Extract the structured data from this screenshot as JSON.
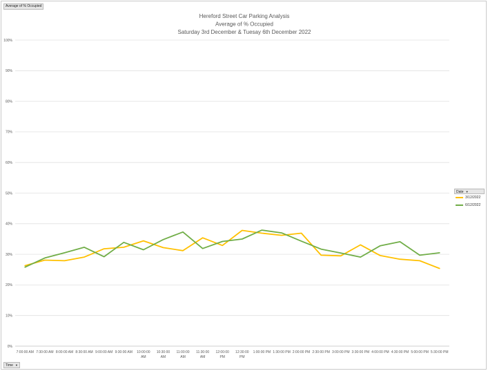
{
  "pivot": {
    "value_field": "Average of % Occupied",
    "axis_field": "Time",
    "legend_field": "Date"
  },
  "chart_data": {
    "type": "line",
    "title": [
      "Hereford Street Car Parking Analysis",
      "Average of % Occupied",
      "Saturday 3rd December & Tuesay 6th December 2022"
    ],
    "xlabel": "",
    "ylabel": "",
    "ylim": [
      0,
      100
    ],
    "yticks": [
      "0%",
      "10%",
      "20%",
      "30%",
      "40%",
      "50%",
      "60%",
      "70%",
      "80%",
      "90%",
      "100%"
    ],
    "categories": [
      [
        "7:00:00 AM"
      ],
      [
        "7:30:00 AM"
      ],
      [
        "8:00:00 AM"
      ],
      [
        "8:30:00 AM"
      ],
      [
        "9:00:00 AM"
      ],
      [
        "9:30:00 AM"
      ],
      [
        "10:00:00",
        "AM"
      ],
      [
        "10:30:00",
        "AM"
      ],
      [
        "11:00:00",
        "AM"
      ],
      [
        "11:30:00",
        "AM"
      ],
      [
        "12:00:00",
        "PM"
      ],
      [
        "12:30:00",
        "PM"
      ],
      [
        "1:00:00 PM"
      ],
      [
        "1:30:00 PM"
      ],
      [
        "2:00:00 PM"
      ],
      [
        "2:30:00 PM"
      ],
      [
        "3:00:00 PM"
      ],
      [
        "3:30:00 PM"
      ],
      [
        "4:00:00 PM"
      ],
      [
        "4:30:00 PM"
      ],
      [
        "5:00:00 PM"
      ],
      [
        "5:30:00 PM"
      ]
    ],
    "legend_position": "right",
    "series": [
      {
        "name": "3/12/2022",
        "color": "#FFC000",
        "values": [
          26.3,
          28.1,
          27.9,
          29.1,
          31.8,
          32.3,
          34.4,
          32.2,
          31.2,
          35.4,
          32.9,
          37.8,
          36.9,
          36.2,
          36.9,
          29.7,
          29.5,
          33.1,
          29.6,
          28.4,
          27.9,
          25.4
        ]
      },
      {
        "name": "6/12/2022",
        "color": "#70AD47",
        "values": [
          25.8,
          28.8,
          30.5,
          32.3,
          29.2,
          33.9,
          31.5,
          34.8,
          37.3,
          31.9,
          34.2,
          35.0,
          37.9,
          37.0,
          34.3,
          31.7,
          30.4,
          29.1,
          32.8,
          34.1,
          29.7,
          30.5
        ]
      }
    ]
  }
}
